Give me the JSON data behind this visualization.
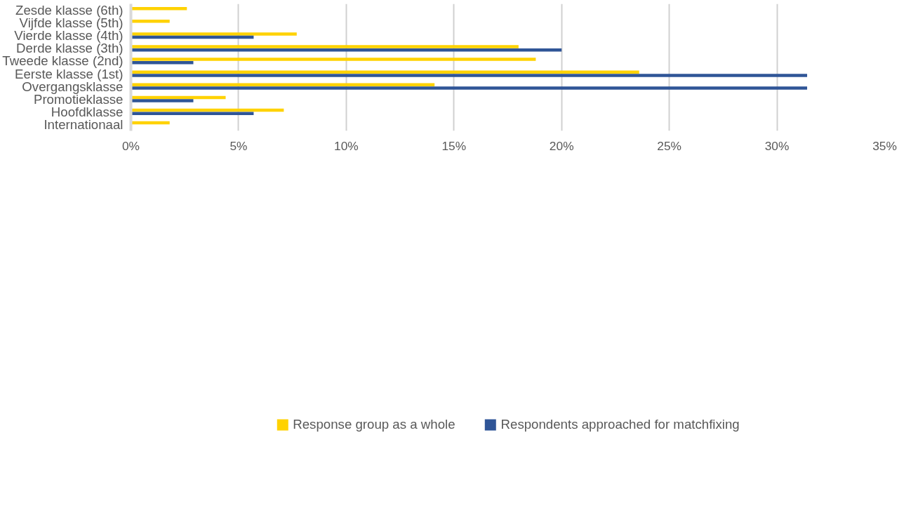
{
  "chart_data": {
    "type": "bar",
    "orientation": "horizontal",
    "categories": [
      "Zesde klasse (6th)",
      "Vijfde klasse (5th)",
      "Vierde klasse (4th)",
      "Derde klasse (3th)",
      "Tweede klasse (2nd)",
      "Eerste klasse (1st)",
      "Overgangsklasse",
      "Promotieklasse",
      "Hoofdklasse",
      "Internationaal"
    ],
    "series": [
      {
        "name": "Response group as a whole",
        "color": "#ffd200",
        "values": [
          2.6,
          1.8,
          7.7,
          18,
          18.8,
          23.6,
          14.1,
          4.4,
          7.1,
          1.8
        ]
      },
      {
        "name": "Respondents approached for matchfixing",
        "color": "#2f5597",
        "values": [
          null,
          null,
          5.7,
          20,
          2.9,
          31.4,
          31.4,
          2.9,
          5.7,
          null
        ]
      }
    ],
    "xlim": [
      0,
      35
    ],
    "xticks": [
      {
        "value": 0,
        "label": "0%"
      },
      {
        "value": 5,
        "label": "5%"
      },
      {
        "value": 10,
        "label": "10%"
      },
      {
        "value": 15,
        "label": "15%"
      },
      {
        "value": 20,
        "label": "20%"
      },
      {
        "value": 25,
        "label": "25%"
      },
      {
        "value": 30,
        "label": "30%"
      },
      {
        "value": 35,
        "label": "35%"
      }
    ],
    "grid": "x",
    "legend": "bottom"
  }
}
